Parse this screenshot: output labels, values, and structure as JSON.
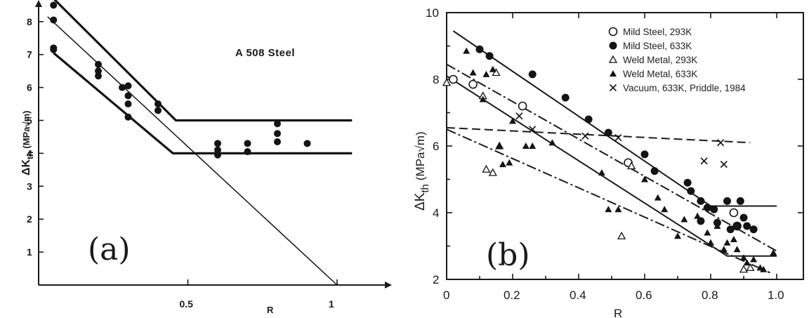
{
  "chart_data": [
    {
      "type": "scatter",
      "panel_label": "(a)",
      "annotation": "A 508 Steel",
      "ylabel": "ΔK",
      "ylabel_sub": "th",
      "ylabel_units": "(MPa√m)",
      "xlabel": "R",
      "x_ticks": [
        "0.5",
        "1"
      ],
      "y_ticks": [
        "1",
        "2",
        "3",
        "4",
        "5",
        "6",
        "7",
        "8"
      ],
      "xlim": [
        0,
        1.15
      ],
      "ylim": [
        0,
        8.8
      ],
      "points": [
        [
          0.05,
          8.5
        ],
        [
          0.05,
          8.05
        ],
        [
          0.05,
          7.2
        ],
        [
          0.05,
          7.15
        ],
        [
          0.2,
          6.7
        ],
        [
          0.2,
          6.5
        ],
        [
          0.2,
          6.35
        ],
        [
          0.28,
          6.0
        ],
        [
          0.3,
          6.05
        ],
        [
          0.3,
          5.75
        ],
        [
          0.3,
          5.5
        ],
        [
          0.3,
          5.1
        ],
        [
          0.4,
          5.5
        ],
        [
          0.4,
          5.3
        ],
        [
          0.6,
          4.3
        ],
        [
          0.6,
          4.1
        ],
        [
          0.6,
          3.95
        ],
        [
          0.7,
          4.3
        ],
        [
          0.7,
          4.05
        ],
        [
          0.8,
          4.9
        ],
        [
          0.8,
          4.6
        ],
        [
          0.8,
          4.35
        ],
        [
          0.9,
          4.3
        ]
      ],
      "lines": [
        {
          "style": "bold",
          "points": [
            [
              0.05,
              8.7
            ],
            [
              0.46,
              5.0
            ],
            [
              1.05,
              5.0
            ]
          ]
        },
        {
          "style": "bold",
          "points": [
            [
              0.05,
              7.05
            ],
            [
              0.45,
              4.0
            ],
            [
              1.05,
              4.0
            ]
          ]
        },
        {
          "style": "thin",
          "points": [
            [
              0.03,
              8.15
            ],
            [
              1.0,
              0.0
            ]
          ]
        }
      ]
    },
    {
      "type": "scatter",
      "panel_label": "(b)",
      "ylabel": "ΔK",
      "ylabel_sub": "th",
      "ylabel_units": "(MPa√m)",
      "xlabel": "R",
      "x_ticks": [
        "0",
        "0.2",
        "0.4",
        "0.6",
        "0.8",
        "1.0"
      ],
      "y_ticks": [
        "2",
        "4",
        "6",
        "8",
        "10"
      ],
      "xlim": [
        0,
        1.05
      ],
      "ylim": [
        2,
        10
      ],
      "legend_position": "top-right",
      "series": [
        {
          "name": "Mild Steel, 293K",
          "marker": "open-circle",
          "points": [
            [
              0.02,
              8.0
            ],
            [
              0.08,
              7.85
            ],
            [
              0.23,
              7.2
            ],
            [
              0.55,
              5.5
            ],
            [
              0.87,
              4.0
            ],
            [
              0.88,
              3.6
            ]
          ]
        },
        {
          "name": "Mild Steel,  633K",
          "marker": "filled-circle",
          "points": [
            [
              0.1,
              8.9
            ],
            [
              0.13,
              8.7
            ],
            [
              0.26,
              8.15
            ],
            [
              0.36,
              7.45
            ],
            [
              0.43,
              6.8
            ],
            [
              0.49,
              6.4
            ],
            [
              0.6,
              5.75
            ],
            [
              0.63,
              5.25
            ],
            [
              0.73,
              4.9
            ],
            [
              0.74,
              4.65
            ],
            [
              0.77,
              4.35
            ],
            [
              0.79,
              4.15
            ],
            [
              0.81,
              4.1
            ],
            [
              0.85,
              4.35
            ],
            [
              0.89,
              4.35
            ],
            [
              0.77,
              3.75
            ],
            [
              0.82,
              3.7
            ],
            [
              0.88,
              3.6
            ],
            [
              0.9,
              3.85
            ],
            [
              0.91,
              3.6
            ],
            [
              0.93,
              3.5
            ],
            [
              0.86,
              3.5
            ]
          ]
        },
        {
          "name": "Weld Metal, 293K",
          "marker": "open-triangle",
          "points": [
            [
              0.0,
              7.9
            ],
            [
              0.11,
              7.5
            ],
            [
              0.15,
              8.2
            ],
            [
              0.12,
              5.3
            ],
            [
              0.14,
              5.2
            ],
            [
              0.16,
              6.0
            ],
            [
              0.53,
              3.3
            ],
            [
              0.56,
              5.4
            ],
            [
              0.9,
              2.3
            ],
            [
              0.92,
              2.35
            ]
          ]
        },
        {
          "name": "Weld Metal, 633K",
          "marker": "filled-triangle",
          "points": [
            [
              0.06,
              8.85
            ],
            [
              0.08,
              8.2
            ],
            [
              0.12,
              8.15
            ],
            [
              0.14,
              8.3
            ],
            [
              0.11,
              7.4
            ],
            [
              0.16,
              6.0
            ],
            [
              0.17,
              5.45
            ],
            [
              0.19,
              5.5
            ],
            [
              0.2,
              6.75
            ],
            [
              0.24,
              6.0
            ],
            [
              0.26,
              6.0
            ],
            [
              0.32,
              6.1
            ],
            [
              0.47,
              5.2
            ],
            [
              0.49,
              4.1
            ],
            [
              0.52,
              4.1
            ],
            [
              0.6,
              5.0
            ],
            [
              0.64,
              4.45
            ],
            [
              0.66,
              4.1
            ],
            [
              0.7,
              3.3
            ],
            [
              0.72,
              3.8
            ],
            [
              0.76,
              3.9
            ],
            [
              0.79,
              3.4
            ],
            [
              0.8,
              3.1
            ],
            [
              0.82,
              3.6
            ],
            [
              0.84,
              2.9
            ],
            [
              0.85,
              3.1
            ],
            [
              0.87,
              3.2
            ],
            [
              0.88,
              2.9
            ],
            [
              0.9,
              2.65
            ],
            [
              0.91,
              2.5
            ],
            [
              0.93,
              2.6
            ],
            [
              0.95,
              2.35
            ],
            [
              0.96,
              2.3
            ],
            [
              0.99,
              2.8
            ]
          ]
        },
        {
          "name": "Vacuum, 633K, Priddle, 1984",
          "marker": "x",
          "points": [
            [
              0.22,
              6.9
            ],
            [
              0.26,
              6.5
            ],
            [
              0.42,
              6.3
            ],
            [
              0.52,
              6.25
            ],
            [
              0.78,
              5.55
            ],
            [
              0.83,
              6.1
            ],
            [
              0.84,
              5.45
            ]
          ]
        }
      ],
      "lines": [
        {
          "style": "solid",
          "points": [
            [
              0.02,
              9.45
            ],
            [
              0.8,
              4.2
            ],
            [
              1.0,
              4.2
            ]
          ]
        },
        {
          "style": "solid",
          "points": [
            [
              0.0,
              8.1
            ],
            [
              0.85,
              2.7
            ],
            [
              1.0,
              2.7
            ]
          ]
        },
        {
          "style": "dashdot",
          "points": [
            [
              0.0,
              8.45
            ],
            [
              1.0,
              2.85
            ]
          ]
        },
        {
          "style": "dashdot",
          "points": [
            [
              0.0,
              6.5
            ],
            [
              0.98,
              2.2
            ]
          ]
        },
        {
          "style": "dashed",
          "points": [
            [
              0.0,
              6.55
            ],
            [
              0.92,
              6.1
            ]
          ]
        }
      ]
    }
  ]
}
